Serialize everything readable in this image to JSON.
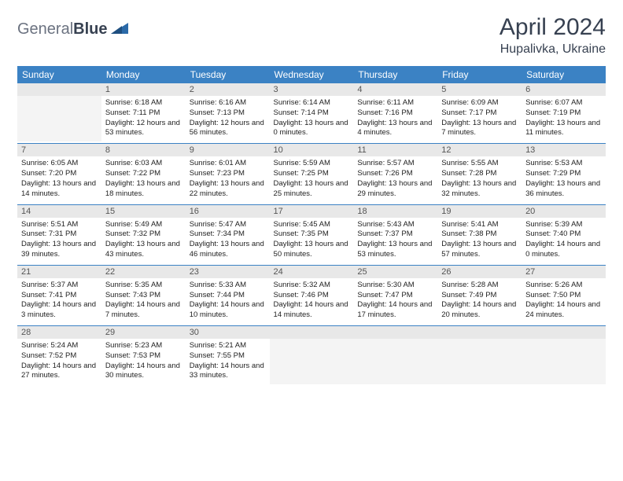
{
  "logo": {
    "part1": "General",
    "part2": "Blue"
  },
  "title": "April 2024",
  "location": "Hupalivka, Ukraine",
  "colors": {
    "header_bg": "#3b82c4",
    "header_text": "#ffffff",
    "daynum_bg": "#e8e8e8",
    "empty_bg": "#f4f4f4",
    "row_border": "#3b82c4",
    "logo_gray": "#6b7280",
    "logo_blue": "#2b6aa8"
  },
  "weekdays": [
    "Sunday",
    "Monday",
    "Tuesday",
    "Wednesday",
    "Thursday",
    "Friday",
    "Saturday"
  ],
  "weeks": [
    [
      {
        "day": "",
        "lines": []
      },
      {
        "day": "1",
        "lines": [
          "Sunrise: 6:18 AM",
          "Sunset: 7:11 PM",
          "Daylight: 12 hours and 53 minutes."
        ]
      },
      {
        "day": "2",
        "lines": [
          "Sunrise: 6:16 AM",
          "Sunset: 7:13 PM",
          "Daylight: 12 hours and 56 minutes."
        ]
      },
      {
        "day": "3",
        "lines": [
          "Sunrise: 6:14 AM",
          "Sunset: 7:14 PM",
          "Daylight: 13 hours and 0 minutes."
        ]
      },
      {
        "day": "4",
        "lines": [
          "Sunrise: 6:11 AM",
          "Sunset: 7:16 PM",
          "Daylight: 13 hours and 4 minutes."
        ]
      },
      {
        "day": "5",
        "lines": [
          "Sunrise: 6:09 AM",
          "Sunset: 7:17 PM",
          "Daylight: 13 hours and 7 minutes."
        ]
      },
      {
        "day": "6",
        "lines": [
          "Sunrise: 6:07 AM",
          "Sunset: 7:19 PM",
          "Daylight: 13 hours and 11 minutes."
        ]
      }
    ],
    [
      {
        "day": "7",
        "lines": [
          "Sunrise: 6:05 AM",
          "Sunset: 7:20 PM",
          "Daylight: 13 hours and 14 minutes."
        ]
      },
      {
        "day": "8",
        "lines": [
          "Sunrise: 6:03 AM",
          "Sunset: 7:22 PM",
          "Daylight: 13 hours and 18 minutes."
        ]
      },
      {
        "day": "9",
        "lines": [
          "Sunrise: 6:01 AM",
          "Sunset: 7:23 PM",
          "Daylight: 13 hours and 22 minutes."
        ]
      },
      {
        "day": "10",
        "lines": [
          "Sunrise: 5:59 AM",
          "Sunset: 7:25 PM",
          "Daylight: 13 hours and 25 minutes."
        ]
      },
      {
        "day": "11",
        "lines": [
          "Sunrise: 5:57 AM",
          "Sunset: 7:26 PM",
          "Daylight: 13 hours and 29 minutes."
        ]
      },
      {
        "day": "12",
        "lines": [
          "Sunrise: 5:55 AM",
          "Sunset: 7:28 PM",
          "Daylight: 13 hours and 32 minutes."
        ]
      },
      {
        "day": "13",
        "lines": [
          "Sunrise: 5:53 AM",
          "Sunset: 7:29 PM",
          "Daylight: 13 hours and 36 minutes."
        ]
      }
    ],
    [
      {
        "day": "14",
        "lines": [
          "Sunrise: 5:51 AM",
          "Sunset: 7:31 PM",
          "Daylight: 13 hours and 39 minutes."
        ]
      },
      {
        "day": "15",
        "lines": [
          "Sunrise: 5:49 AM",
          "Sunset: 7:32 PM",
          "Daylight: 13 hours and 43 minutes."
        ]
      },
      {
        "day": "16",
        "lines": [
          "Sunrise: 5:47 AM",
          "Sunset: 7:34 PM",
          "Daylight: 13 hours and 46 minutes."
        ]
      },
      {
        "day": "17",
        "lines": [
          "Sunrise: 5:45 AM",
          "Sunset: 7:35 PM",
          "Daylight: 13 hours and 50 minutes."
        ]
      },
      {
        "day": "18",
        "lines": [
          "Sunrise: 5:43 AM",
          "Sunset: 7:37 PM",
          "Daylight: 13 hours and 53 minutes."
        ]
      },
      {
        "day": "19",
        "lines": [
          "Sunrise: 5:41 AM",
          "Sunset: 7:38 PM",
          "Daylight: 13 hours and 57 minutes."
        ]
      },
      {
        "day": "20",
        "lines": [
          "Sunrise: 5:39 AM",
          "Sunset: 7:40 PM",
          "Daylight: 14 hours and 0 minutes."
        ]
      }
    ],
    [
      {
        "day": "21",
        "lines": [
          "Sunrise: 5:37 AM",
          "Sunset: 7:41 PM",
          "Daylight: 14 hours and 3 minutes."
        ]
      },
      {
        "day": "22",
        "lines": [
          "Sunrise: 5:35 AM",
          "Sunset: 7:43 PM",
          "Daylight: 14 hours and 7 minutes."
        ]
      },
      {
        "day": "23",
        "lines": [
          "Sunrise: 5:33 AM",
          "Sunset: 7:44 PM",
          "Daylight: 14 hours and 10 minutes."
        ]
      },
      {
        "day": "24",
        "lines": [
          "Sunrise: 5:32 AM",
          "Sunset: 7:46 PM",
          "Daylight: 14 hours and 14 minutes."
        ]
      },
      {
        "day": "25",
        "lines": [
          "Sunrise: 5:30 AM",
          "Sunset: 7:47 PM",
          "Daylight: 14 hours and 17 minutes."
        ]
      },
      {
        "day": "26",
        "lines": [
          "Sunrise: 5:28 AM",
          "Sunset: 7:49 PM",
          "Daylight: 14 hours and 20 minutes."
        ]
      },
      {
        "day": "27",
        "lines": [
          "Sunrise: 5:26 AM",
          "Sunset: 7:50 PM",
          "Daylight: 14 hours and 24 minutes."
        ]
      }
    ],
    [
      {
        "day": "28",
        "lines": [
          "Sunrise: 5:24 AM",
          "Sunset: 7:52 PM",
          "Daylight: 14 hours and 27 minutes."
        ]
      },
      {
        "day": "29",
        "lines": [
          "Sunrise: 5:23 AM",
          "Sunset: 7:53 PM",
          "Daylight: 14 hours and 30 minutes."
        ]
      },
      {
        "day": "30",
        "lines": [
          "Sunrise: 5:21 AM",
          "Sunset: 7:55 PM",
          "Daylight: 14 hours and 33 minutes."
        ]
      },
      {
        "day": "",
        "lines": []
      },
      {
        "day": "",
        "lines": []
      },
      {
        "day": "",
        "lines": []
      },
      {
        "day": "",
        "lines": []
      }
    ]
  ]
}
